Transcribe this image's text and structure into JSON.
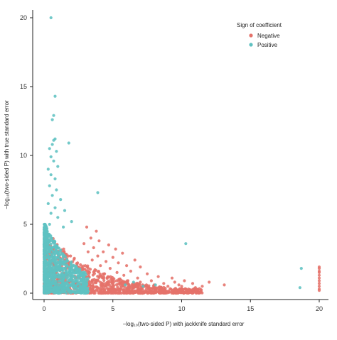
{
  "chart_data": {
    "type": "scatter",
    "xlabel": "−log₁₀(two-sided P) with jackknife standard error",
    "ylabel": "−log₁₀(two-sided P) with true standard error",
    "xlim": [
      0,
      20
    ],
    "ylim": [
      0,
      20
    ],
    "x_ticks": [
      "0",
      "5",
      "10",
      "15",
      "20"
    ],
    "y_ticks": [
      "0",
      "5",
      "10",
      "15",
      "20"
    ],
    "grid": false,
    "legend": {
      "title": "Sign of coefficient",
      "position": "top-right",
      "entries": [
        "Negative",
        "Positive"
      ]
    },
    "series": [
      {
        "name": "Negative",
        "color": "#e5726a",
        "points": [
          [
            20,
            1.9
          ],
          [
            20,
            1.8
          ],
          [
            20,
            1.6
          ],
          [
            20,
            1.5
          ],
          [
            20,
            1.3
          ],
          [
            20,
            1.1
          ],
          [
            20,
            0.9
          ],
          [
            20,
            0.7
          ],
          [
            20,
            0.5
          ],
          [
            20,
            0.3
          ],
          [
            20,
            0.2
          ],
          [
            13.1,
            0.6
          ],
          [
            12.0,
            0.8
          ],
          [
            11.5,
            0.5
          ],
          [
            11.0,
            0.4
          ],
          [
            10.8,
            0.7
          ],
          [
            10.5,
            0.3
          ],
          [
            10.2,
            0.9
          ],
          [
            10.0,
            0.5
          ],
          [
            9.8,
            0.6
          ],
          [
            9.5,
            0.8
          ],
          [
            9.3,
            1.1
          ],
          [
            9.0,
            0.5
          ],
          [
            8.7,
            0.7
          ],
          [
            8.5,
            0.4
          ],
          [
            8.3,
            1.2
          ],
          [
            8.0,
            0.6
          ],
          [
            7.8,
            0.9
          ],
          [
            7.5,
            1.4
          ],
          [
            7.3,
            0.5
          ],
          [
            7.0,
            0.8
          ],
          [
            7.0,
            1.9
          ],
          [
            6.8,
            1.1
          ],
          [
            6.6,
            2.4
          ],
          [
            6.5,
            0.6
          ],
          [
            6.3,
            1.6
          ],
          [
            6.1,
            0.9
          ],
          [
            6.0,
            2.0
          ],
          [
            5.8,
            1.3
          ],
          [
            5.7,
            2.9
          ],
          [
            5.5,
            0.7
          ],
          [
            5.4,
            2.2
          ],
          [
            5.3,
            1.5
          ],
          [
            5.2,
            3.2
          ],
          [
            5.0,
            1.0
          ],
          [
            5.0,
            2.6
          ],
          [
            4.8,
            1.8
          ],
          [
            4.7,
            3.5
          ],
          [
            4.6,
            0.8
          ],
          [
            4.5,
            2.3
          ],
          [
            4.4,
            1.4
          ],
          [
            4.3,
            3.0
          ],
          [
            4.2,
            0.6
          ],
          [
            4.1,
            2.0
          ],
          [
            4.0,
            3.8
          ],
          [
            4.0,
            1.2
          ],
          [
            3.9,
            2.7
          ],
          [
            3.8,
            4.5
          ],
          [
            3.7,
            1.7
          ],
          [
            3.6,
            3.3
          ],
          [
            3.5,
            0.9
          ],
          [
            3.5,
            2.4
          ],
          [
            3.4,
            4.0
          ],
          [
            3.3,
            1.5
          ],
          [
            3.2,
            3.0
          ],
          [
            3.1,
            4.8
          ],
          [
            3.0,
            2.0
          ],
          [
            3.0,
            0.7
          ],
          [
            2.9,
            3.6
          ],
          [
            2.8,
            1.3
          ]
        ]
      },
      {
        "name": "Positive",
        "color": "#5fc1c1",
        "points": [
          [
            0.5,
            20.0
          ],
          [
            0.8,
            14.3
          ],
          [
            0.7,
            12.9
          ],
          [
            0.6,
            12.6
          ],
          [
            0.8,
            11.2
          ],
          [
            0.7,
            11.1
          ],
          [
            0.6,
            10.8
          ],
          [
            1.8,
            10.9
          ],
          [
            0.4,
            10.5
          ],
          [
            0.9,
            10.3
          ],
          [
            0.5,
            9.9
          ],
          [
            0.7,
            9.6
          ],
          [
            0.3,
            9.0
          ],
          [
            1.0,
            9.2
          ],
          [
            0.5,
            8.6
          ],
          [
            0.8,
            8.3
          ],
          [
            0.4,
            7.8
          ],
          [
            3.9,
            7.3
          ],
          [
            0.9,
            7.5
          ],
          [
            0.6,
            7.1
          ],
          [
            1.2,
            6.8
          ],
          [
            0.3,
            6.5
          ],
          [
            0.8,
            6.2
          ],
          [
            1.5,
            6.0
          ],
          [
            0.5,
            5.8
          ],
          [
            1.0,
            5.5
          ],
          [
            2.0,
            5.2
          ],
          [
            0.4,
            5.0
          ],
          [
            1.4,
            4.8
          ],
          [
            10.3,
            3.6
          ],
          [
            18.7,
            1.8
          ],
          [
            18.6,
            0.4
          ],
          [
            8.1,
            0.6
          ],
          [
            7.2,
            0.5
          ],
          [
            6.5,
            0.8
          ],
          [
            5.9,
            0.6
          ]
        ]
      }
    ]
  }
}
